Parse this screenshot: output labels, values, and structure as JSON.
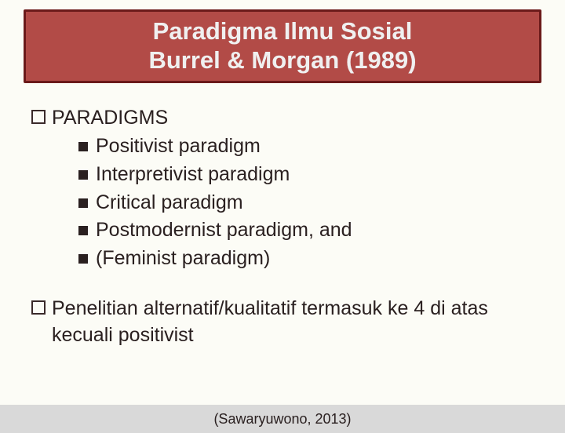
{
  "title": {
    "line1": "Paradigma Ilmu Sosial",
    "line2": "Burrel & Morgan (1989)",
    "bg_color": "#b24b47",
    "border_color": "#6b1a1a",
    "text_color": "#f0f0f0",
    "fontsize": 31
  },
  "body": {
    "text_color": "#2a2020",
    "fontsize": 25,
    "items": [
      {
        "text": "PARADIGMS",
        "subitems": [
          "Positivist paradigm",
          "Interpretivist paradigm",
          "Critical paradigm",
          "Postmodernist paradigm, and",
          "(Feminist paradigm)"
        ]
      },
      {
        "text": "Penelitian alternatif/kualitatif termasuk ke 4 di atas kecuali positivist",
        "subitems": []
      }
    ]
  },
  "citation": {
    "text": "(Sawaryuwono, 2013)",
    "bg_color": "#d9d9d9",
    "fontsize": 18
  },
  "background_color": "#fcfcf6"
}
